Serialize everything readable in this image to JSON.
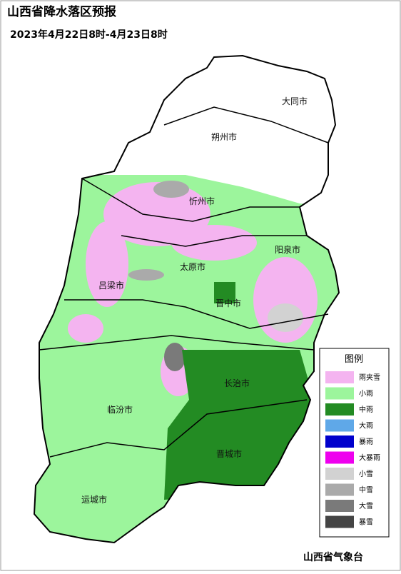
{
  "title": "山西省降水落区预报",
  "subtitle": "2023年4月22日8时-4月23日8时",
  "cities": [
    "大同市",
    "朔州市",
    "忻州市",
    "阳泉市",
    "太原市",
    "吕梁市",
    "晋中市",
    "长治市",
    "临汾市",
    "晋城市",
    "运城市"
  ],
  "legend": {
    "title": "图例",
    "items": [
      {
        "label": "雨夹雪",
        "color": "#f4b4f0"
      },
      {
        "label": "小雨",
        "color": "#9cf59c"
      },
      {
        "label": "中雨",
        "color": "#238b23"
      },
      {
        "label": "大雨",
        "color": "#5fa8e8"
      },
      {
        "label": "暴雨",
        "color": "#0000cc"
      },
      {
        "label": "大暴雨",
        "color": "#ee00ee"
      },
      {
        "label": "小雪",
        "color": "#d2d2d2"
      },
      {
        "label": "中雪",
        "color": "#aaaaaa"
      },
      {
        "label": "大雪",
        "color": "#7a7a7a"
      },
      {
        "label": "暴雪",
        "color": "#444444"
      }
    ]
  },
  "footer": "山西省气象台"
}
